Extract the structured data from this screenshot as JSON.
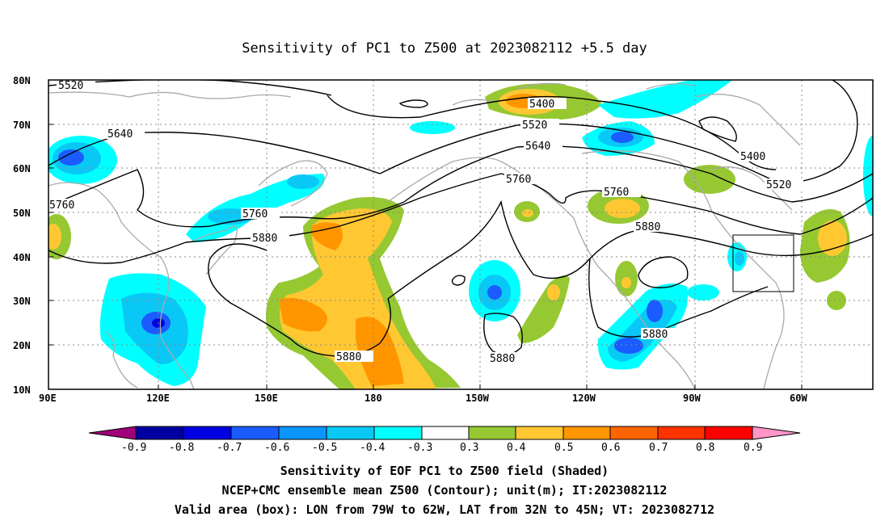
{
  "title": "Sensitivity of PC1 to Z500 at 2023082112 +5.5 day",
  "map": {
    "lat_labels": [
      "80N",
      "70N",
      "60N",
      "50N",
      "40N",
      "30N",
      "20N",
      "10N"
    ],
    "lon_labels": [
      "90E",
      "120E",
      "150E",
      "180",
      "150W",
      "120W",
      "90W",
      "60W"
    ],
    "contour_labels": [
      "5520",
      "5640",
      "5760",
      "5760",
      "5880",
      "5400",
      "5520",
      "5640",
      "5760",
      "5400",
      "5520",
      "5760",
      "5880",
      "5880",
      "5880",
      "5880"
    ],
    "valid_box": {
      "lon_from": "79W",
      "lon_to": "62W",
      "lat_from": "32N",
      "lat_to": "45N"
    },
    "colors": {
      "neg_09": "#a0007a",
      "neg_08": "#0000a0",
      "neg_07": "#0000e0",
      "neg_06": "#1a5cff",
      "neg_05": "#0a96ff",
      "neg_04": "#0ac8f5",
      "neg_03": "#00ffff",
      "zero": "#ffffff",
      "pos_03": "#96c832",
      "pos_04": "#ffc832",
      "pos_05": "#ff9600",
      "pos_06": "#ff6400",
      "pos_07": "#ff3200",
      "pos_08": "#ff0000",
      "pos_09": "#ff96c8",
      "coast": "#aaaaaa",
      "grid": "#888888",
      "contour": "#000000"
    }
  },
  "colorbar": {
    "labels": [
      "-0.9",
      "-0.8",
      "-0.7",
      "-0.6",
      "-0.5",
      "-0.4",
      "-0.3",
      "0.3",
      "0.4",
      "0.5",
      "0.6",
      "0.7",
      "0.8",
      "0.9"
    ]
  },
  "captions": {
    "line1": "Sensitivity of EOF PC1 to Z500 field (Shaded)",
    "line2": "NCEP+CMC ensemble mean Z500 (Contour); unit(m); IT:2023082112",
    "line3": "Valid area (box): LON from 79W to 62W, LAT from 32N to 45N; VT: 2023082712"
  }
}
